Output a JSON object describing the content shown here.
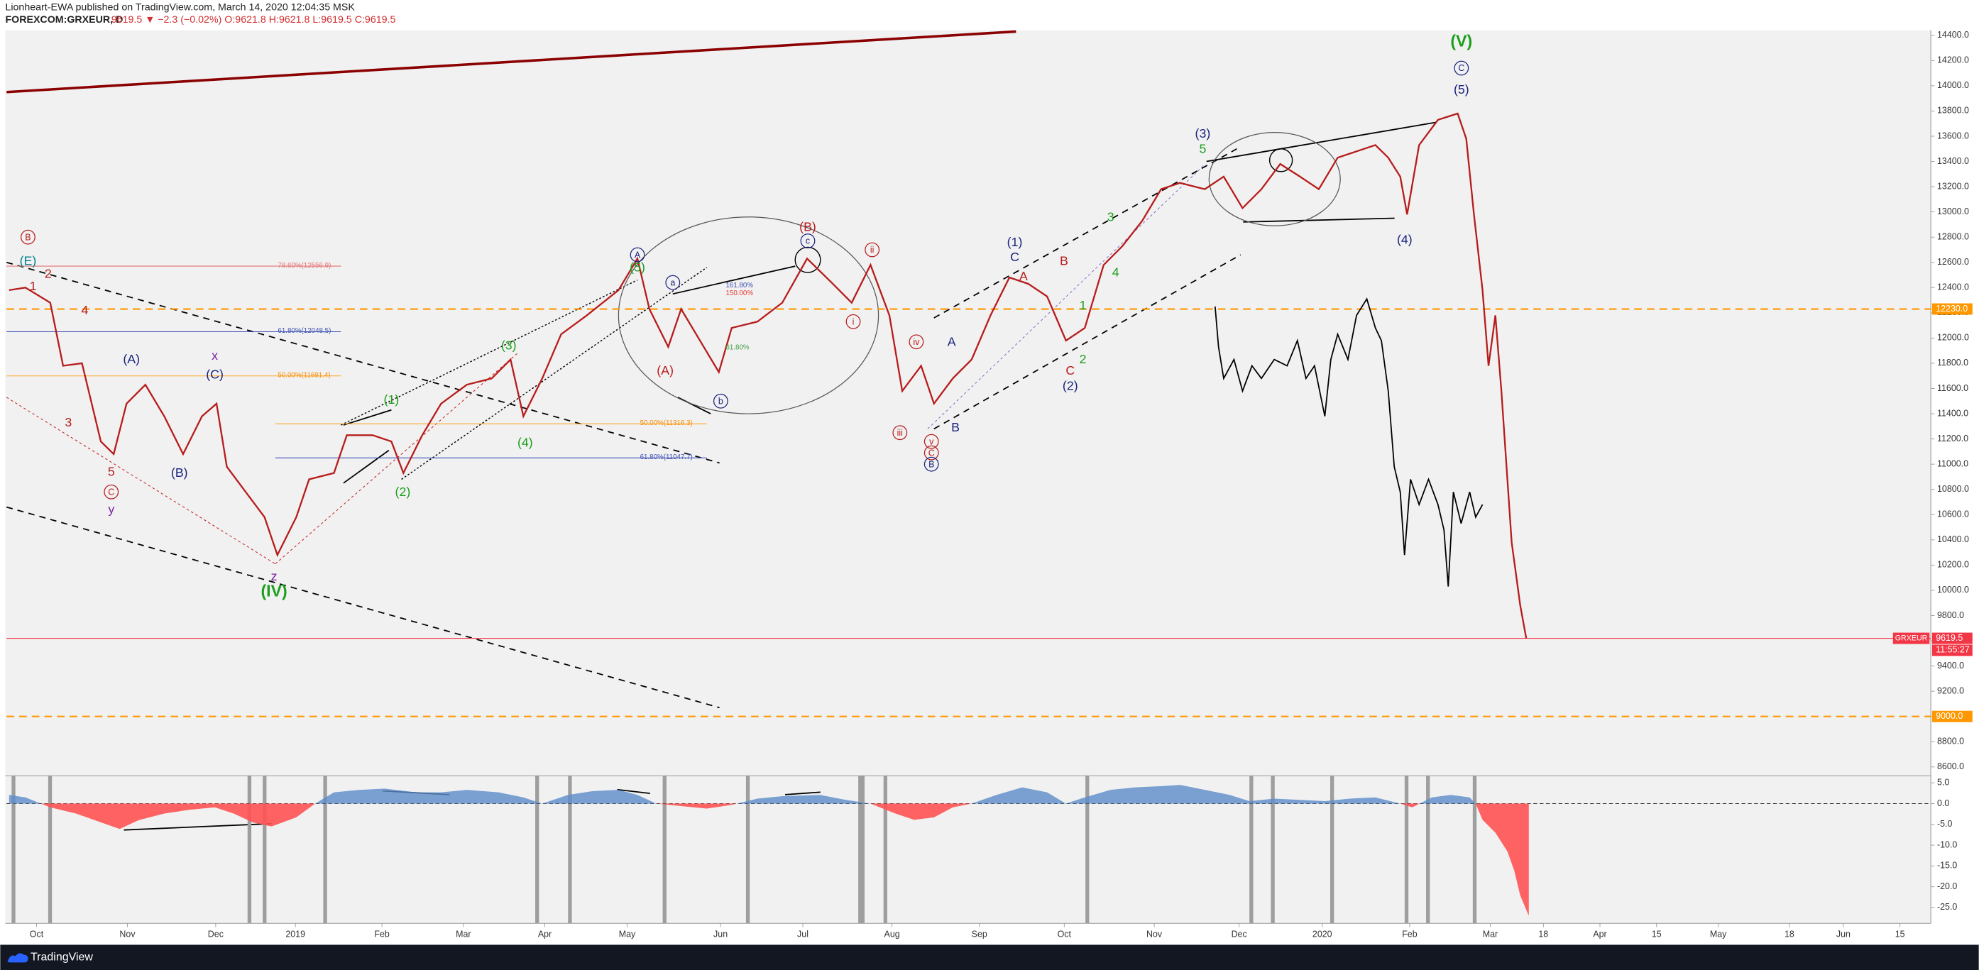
{
  "header": {
    "author_line": "Lionheart-EWA published on TradingView.com, March 14, 2020 12:04:35 MSK",
    "symbol": "FOREXCOM:GRXEUR, D",
    "quote": "9619.5 ▼ −2.3 (−0.02%) O:9621.8 H:9621.8 L:9619.5 C:9619.5"
  },
  "footer": {
    "brand": "TradingView"
  },
  "chart_data": [
    {
      "type": "line",
      "xlim": [
        -0.35,
        22.1
      ],
      "xticks": [
        {
          "value": 0,
          "label": "Oct"
        },
        {
          "value": 1.06,
          "label": "Nov"
        },
        {
          "value": 2.09,
          "label": "Dec"
        },
        {
          "value": 3.02,
          "label": "2019"
        },
        {
          "value": 4.03,
          "label": "Feb"
        },
        {
          "value": 4.98,
          "label": "Mar"
        },
        {
          "value": 5.93,
          "label": "Apr"
        },
        {
          "value": 6.89,
          "label": "May"
        },
        {
          "value": 7.98,
          "label": "Jun"
        },
        {
          "value": 8.94,
          "label": "Jul"
        },
        {
          "value": 9.98,
          "label": "Aug"
        },
        {
          "value": 11.0,
          "label": "Sep"
        },
        {
          "value": 11.99,
          "label": "Oct"
        },
        {
          "value": 13.04,
          "label": "Nov"
        },
        {
          "value": 14.03,
          "label": "Dec"
        },
        {
          "value": 15.0,
          "label": "2020"
        },
        {
          "value": 16.02,
          "label": "Feb"
        },
        {
          "value": 16.96,
          "label": "Mar"
        },
        {
          "value": 17.58,
          "label": "18"
        },
        {
          "value": 18.24,
          "label": "Apr"
        },
        {
          "value": 18.9,
          "label": "15"
        },
        {
          "value": 19.62,
          "label": "May"
        },
        {
          "value": 20.45,
          "label": "18"
        },
        {
          "value": 21.08,
          "label": "Jun"
        },
        {
          "value": 21.74,
          "label": "15"
        }
      ],
      "ylim": [
        8530,
        14440
      ],
      "yticks": [
        {
          "value": 8600,
          "label": "8600.0"
        },
        {
          "value": 8800,
          "label": "8800.0"
        },
        {
          "value": 9000,
          "label": "9000.0"
        },
        {
          "value": 9200,
          "label": "9200.0"
        },
        {
          "value": 9400,
          "label": "9400.0"
        },
        {
          "value": 9600,
          "label": "9600.0"
        },
        {
          "value": 9800,
          "label": "9800.0"
        },
        {
          "value": 10000,
          "label": "10000.0"
        },
        {
          "value": 10200,
          "label": "10200.0"
        },
        {
          "value": 10400,
          "label": "10400.0"
        },
        {
          "value": 10600,
          "label": "10600.0"
        },
        {
          "value": 10800,
          "label": "10800.0"
        },
        {
          "value": 11000,
          "label": "11000.0"
        },
        {
          "value": 11200,
          "label": "11200.0"
        },
        {
          "value": 11400,
          "label": "11400.0"
        },
        {
          "value": 11600,
          "label": "11600.0"
        },
        {
          "value": 11800,
          "label": "11800.0"
        },
        {
          "value": 12000,
          "label": "12000.0"
        },
        {
          "value": 12200,
          "label": "12200.0"
        },
        {
          "value": 12400,
          "label": "12400.0"
        },
        {
          "value": 12600,
          "label": "12600.0"
        },
        {
          "value": 12800,
          "label": "12800.0"
        },
        {
          "value": 13000,
          "label": "13000.0"
        },
        {
          "value": 13200,
          "label": "13200.0"
        },
        {
          "value": 13400,
          "label": "13400.0"
        },
        {
          "value": 13600,
          "label": "13600.0"
        },
        {
          "value": 13800,
          "label": "13800.0"
        },
        {
          "value": 14000,
          "label": "14000.0"
        },
        {
          "value": 14200,
          "label": "14200.0"
        },
        {
          "value": 14400,
          "label": "14400.0"
        }
      ],
      "grid": false,
      "x": [
        -0.32,
        -0.13,
        0.16,
        0.31,
        0.53,
        0.75,
        0.9,
        1.05,
        1.27,
        1.49,
        1.71,
        1.93,
        2.1,
        2.22,
        2.44,
        2.66,
        2.81,
        3.03,
        3.18,
        3.47,
        3.62,
        3.92,
        4.14,
        4.28,
        4.5,
        4.72,
        5.02,
        5.31,
        5.53,
        5.68,
        5.9,
        6.12,
        6.42,
        6.79,
        7.01,
        7.15,
        7.37,
        7.52,
        7.74,
        7.96,
        8.11,
        8.41,
        8.7,
        8.99,
        9.29,
        9.51,
        9.73,
        9.95,
        10.1,
        10.32,
        10.47,
        10.69,
        10.91,
        11.13,
        11.35,
        11.57,
        11.79,
        12.01,
        12.23,
        12.45,
        12.67,
        12.9,
        13.12,
        13.34,
        13.63,
        13.85,
        14.07,
        14.29,
        14.51,
        14.74,
        14.96,
        15.18,
        15.4,
        15.62,
        15.77,
        15.91,
        15.99,
        16.13,
        16.35,
        16.58,
        16.68,
        16.77,
        16.87,
        16.94,
        17.02,
        17.09,
        17.21,
        17.31,
        17.38
      ],
      "series": [
        {
          "name": "GRXEUR",
          "color": "#b71c1c",
          "values": [
            12380,
            12400,
            12280,
            11780,
            11800,
            11180,
            11080,
            11480,
            11630,
            11380,
            11080,
            11380,
            11480,
            10980,
            10780,
            10580,
            10280,
            10580,
            10880,
            10930,
            11230,
            11230,
            11180,
            10930,
            11230,
            11480,
            11630,
            11680,
            11830,
            11380,
            11680,
            12030,
            12180,
            12380,
            12630,
            12230,
            11930,
            12230,
            11980,
            11730,
            12080,
            12130,
            12280,
            12630,
            12430,
            12280,
            12580,
            12180,
            11580,
            11780,
            11480,
            11680,
            11830,
            12180,
            12480,
            12430,
            12330,
            11980,
            12080,
            12580,
            12730,
            12930,
            13180,
            13230,
            13180,
            13280,
            13030,
            13180,
            13380,
            13280,
            13180,
            13430,
            13480,
            13530,
            13430,
            13280,
            12980,
            13530,
            13730,
            13780,
            13580,
            12980,
            12380,
            11780,
            12180,
            11580,
            10380,
            9880,
            9619.5
          ]
        },
        {
          "color": "#000000",
          "x": [
            13.75,
            13.79,
            13.85,
            13.97,
            14.07,
            14.18,
            14.29,
            14.44,
            14.59,
            14.71,
            14.81,
            14.91,
            15.03,
            15.1,
            15.18,
            15.3,
            15.4,
            15.52,
            15.62,
            15.69,
            15.77,
            15.84,
            15.91,
            15.96,
            16.03,
            16.13,
            16.24,
            16.35,
            16.42,
            16.47,
            16.53,
            16.62,
            16.72,
            16.79,
            16.87
          ],
          "values": [
            12250,
            11930,
            11680,
            11830,
            11580,
            11780,
            11680,
            11830,
            11780,
            11980,
            11680,
            11780,
            11380,
            11830,
            12030,
            11830,
            12180,
            12310,
            12080,
            11980,
            11580,
            10980,
            10780,
            10280,
            10880,
            10680,
            10880,
            10680,
            10480,
            10030,
            10780,
            10530,
            10780,
            10580,
            10680
          ]
        }
      ],
      "levels": [
        {
          "value": 12230,
          "label": "12230.0",
          "color": "#ff9800",
          "dash": true
        },
        {
          "value": 9000,
          "label": "9000.0",
          "color": "#ff9800",
          "dash": true
        },
        {
          "value": 9619.5,
          "label": "9619.5",
          "color": "#f23645",
          "dash": false,
          "countdown": "11:55:27"
        }
      ],
      "fib_labels": [
        "78.60%(12556.9)",
        "61.80%(12048.5)",
        "50.00%(11691.4)",
        "50.00%(11316.3)",
        "61.80%(11047.7)",
        "161.80%",
        "150.00%",
        "61.80%"
      ],
      "waves": [
        "B",
        "(E)",
        "2",
        "1",
        "4",
        "3",
        "5",
        "C",
        "y",
        "(A)",
        "(B)",
        "x",
        "(C)",
        "z",
        "(IV)",
        "(1)",
        "(2)",
        "(3)",
        "(4)",
        "A",
        "(5)",
        "a",
        "(A)",
        "b",
        "c",
        "(B)",
        "ii",
        "i",
        "iv",
        "iii",
        "v",
        "C",
        "B",
        "A",
        "B",
        "(1)",
        "C",
        "A",
        "B",
        "1",
        "C",
        "2",
        "(2)",
        "3",
        "4",
        "(3)",
        "5",
        "(4)",
        "(V)",
        "C",
        "(5)"
      ]
    },
    {
      "type": "area",
      "ylim": [
        -28.8,
        6.7
      ],
      "yticks": [
        {
          "value": 5,
          "label": "5.0"
        },
        {
          "value": 0,
          "label": "0.0"
        },
        {
          "value": -5,
          "label": "-5.0"
        },
        {
          "value": -10,
          "label": "-10.0"
        },
        {
          "value": -15,
          "label": "-15.0"
        },
        {
          "value": -20,
          "label": "-20.0"
        },
        {
          "value": -25,
          "label": "-25.0"
        }
      ],
      "x": [
        -0.32,
        -0.13,
        0.16,
        0.46,
        0.75,
        0.97,
        1.19,
        1.49,
        1.78,
        2.08,
        2.3,
        2.52,
        2.74,
        3.03,
        3.25,
        3.47,
        3.77,
        4.06,
        4.43,
        4.72,
        5.02,
        5.39,
        5.68,
        5.9,
        6.2,
        6.49,
        6.79,
        7.01,
        7.23,
        7.52,
        7.82,
        8.11,
        8.41,
        8.7,
        9.14,
        9.44,
        9.73,
        10.02,
        10.24,
        10.47,
        10.69,
        10.91,
        11.2,
        11.5,
        11.79,
        12.01,
        12.23,
        12.53,
        12.82,
        13.12,
        13.34,
        13.63,
        13.92,
        14.15,
        14.44,
        14.74,
        15.03,
        15.32,
        15.62,
        15.91,
        16.05,
        16.28,
        16.5,
        16.72,
        16.79,
        16.87,
        17.02,
        17.16,
        17.24,
        17.31,
        17.41
      ],
      "color": "#5b8cc9",
      "negative_color": "#ff5252",
      "values": [
        2.1,
        1.5,
        -0.9,
        -2.4,
        -4.5,
        -6.1,
        -4.0,
        -2.4,
        -1.5,
        -0.9,
        -2.4,
        -4.5,
        -5.5,
        -3.3,
        0,
        2.7,
        3.3,
        3.6,
        2.7,
        2.7,
        3.3,
        2.7,
        1.5,
        0,
        2.1,
        3.0,
        3.3,
        2.1,
        0,
        -0.6,
        -1.2,
        -0.3,
        1.2,
        1.8,
        2.1,
        0.9,
        0,
        -2.4,
        -3.9,
        -3.3,
        -0.9,
        0,
        2.1,
        3.9,
        2.7,
        0,
        1.5,
        3.3,
        3.9,
        4.2,
        4.5,
        3.3,
        2.1,
        0.6,
        1.2,
        0.9,
        0.6,
        1.2,
        1.5,
        0,
        -0.9,
        1.5,
        2.1,
        1.5,
        0,
        -3.9,
        -7.0,
        -11.5,
        -16.1,
        -22.1,
        -27
      ]
    }
  ]
}
